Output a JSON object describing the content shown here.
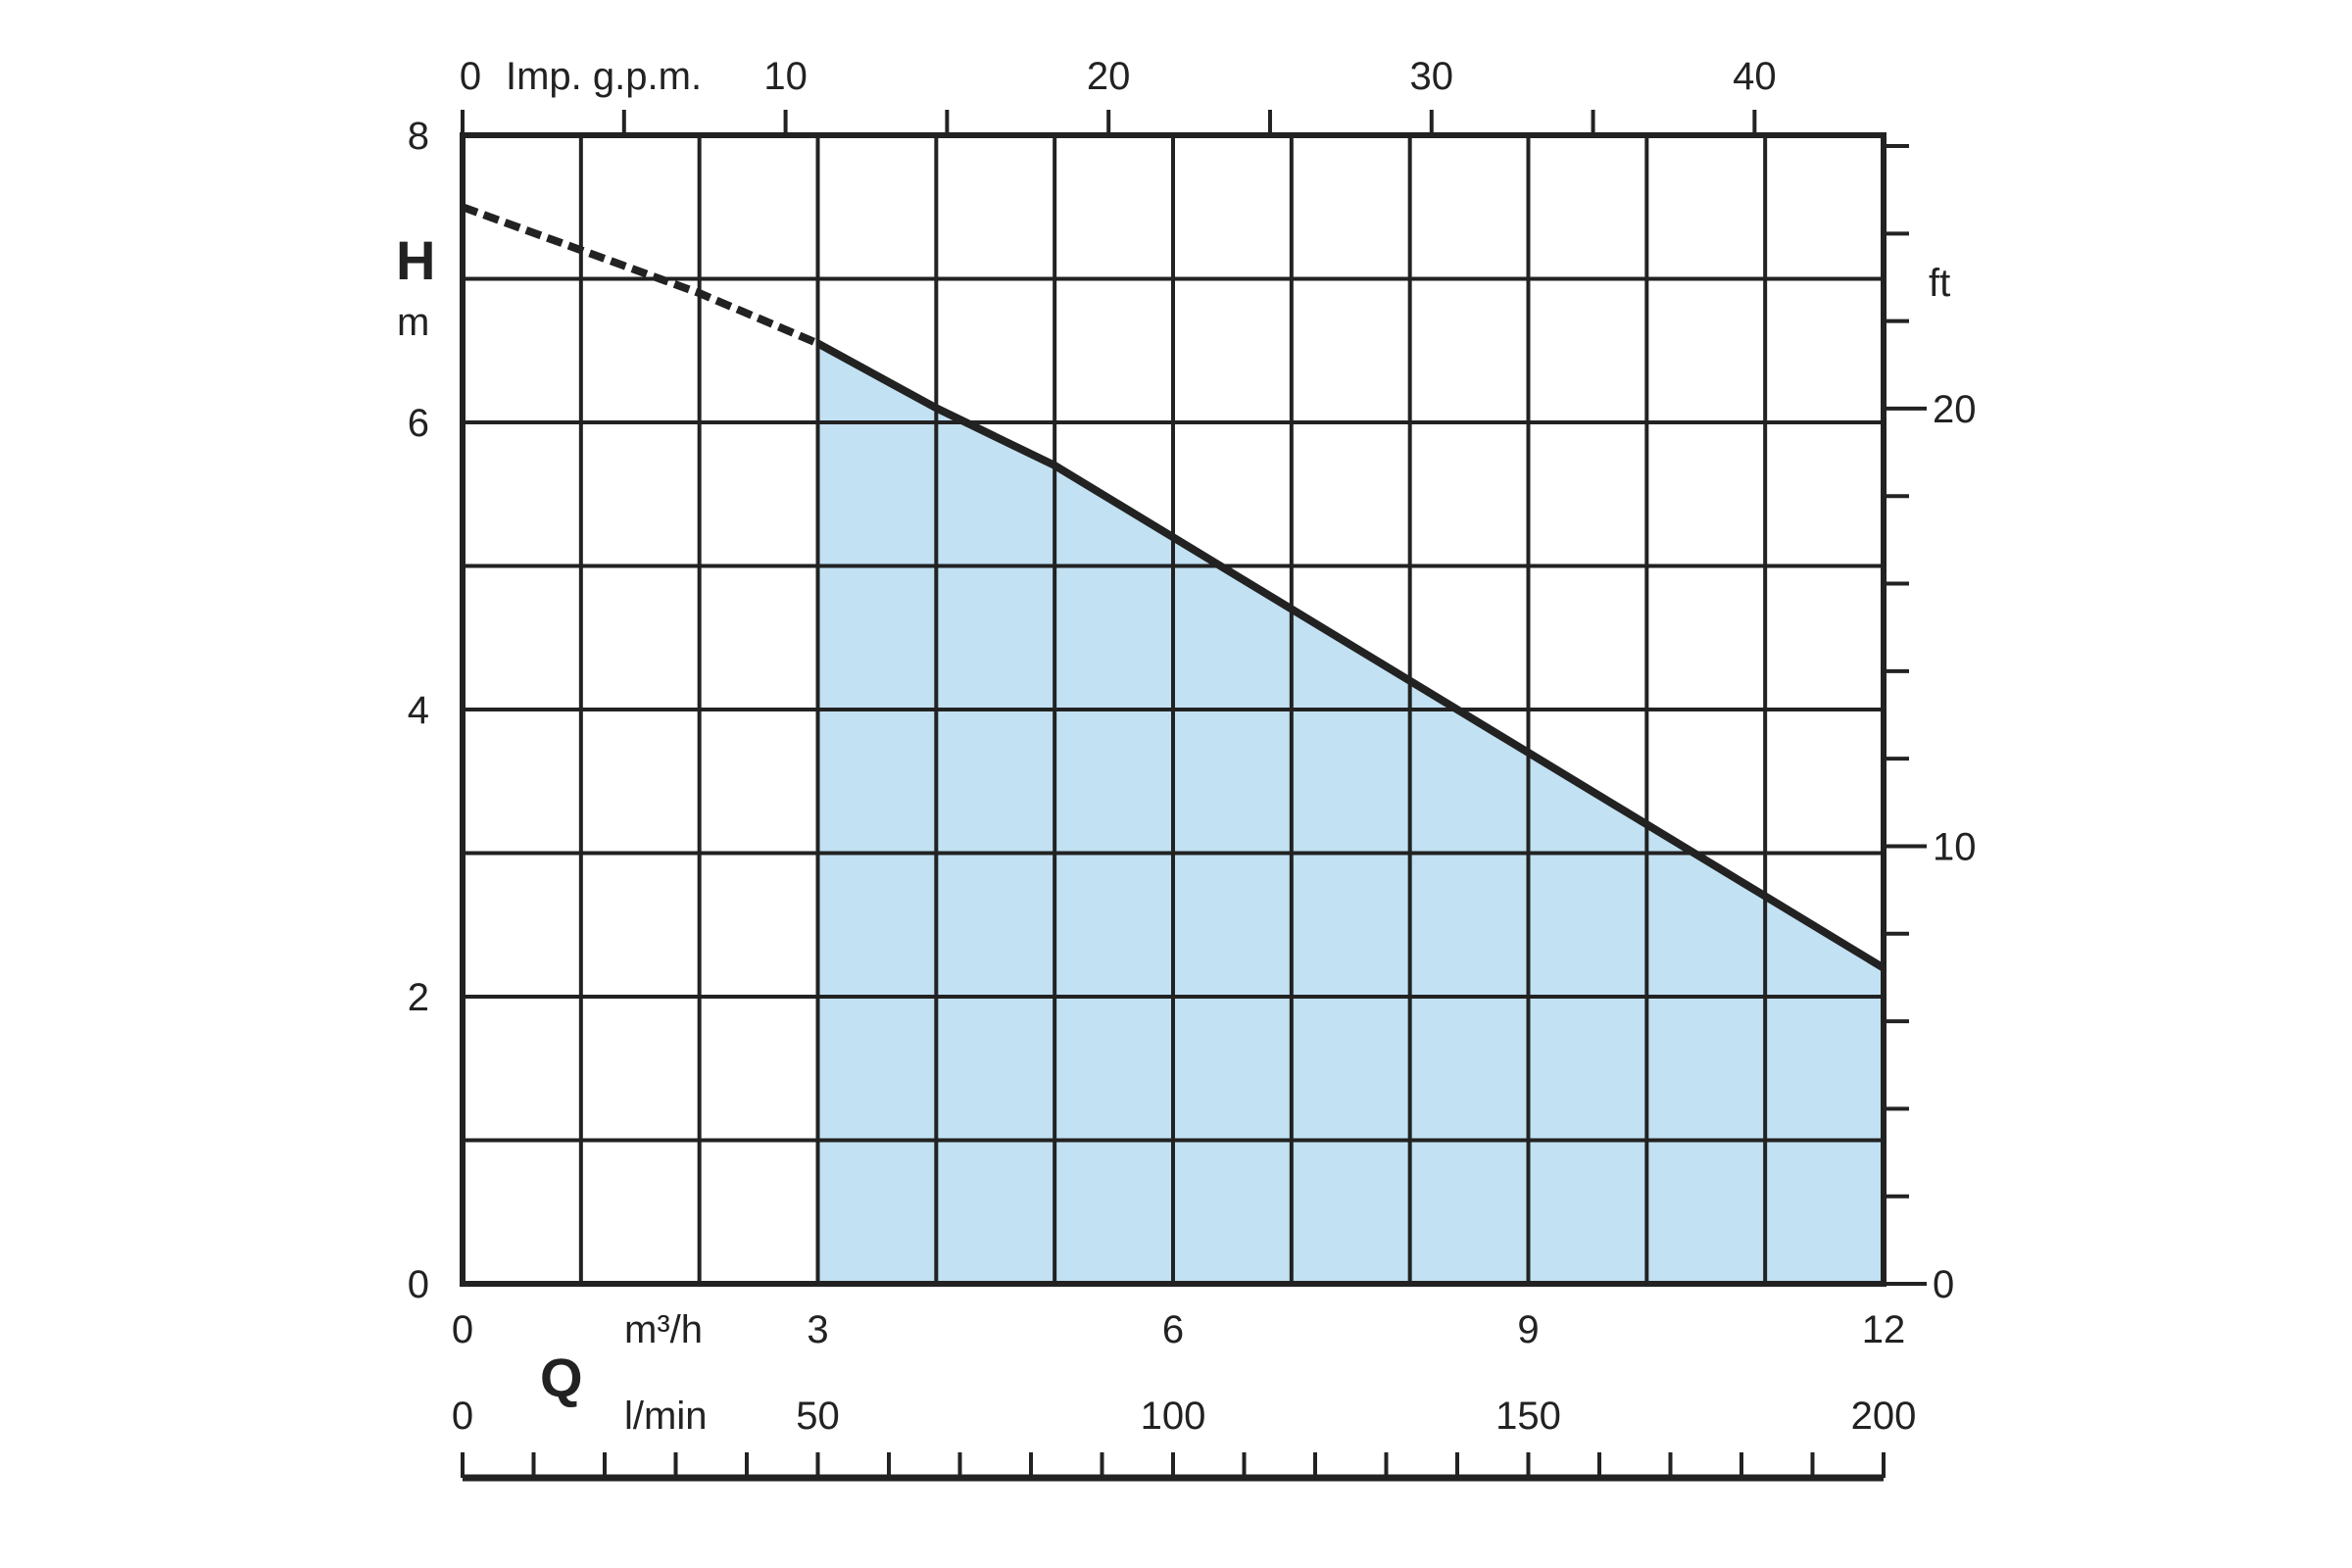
{
  "chart_data": {
    "type": "area",
    "title": "",
    "colors": {
      "fill": "#c2e1f2",
      "curve": "#222222",
      "grid": "#222222"
    },
    "grid": true,
    "axes": {
      "left": {
        "letter": "H",
        "unit": "m",
        "range": [
          0,
          8
        ],
        "ticks": [
          "0",
          "2",
          "4",
          "6",
          "8"
        ]
      },
      "right": {
        "unit": "ft",
        "ticks": [
          "0",
          "10",
          "20"
        ]
      },
      "top": {
        "prefix": "0",
        "unit": "Imp. g.p.m.",
        "ticks": [
          "10",
          "20",
          "30",
          "40"
        ]
      },
      "bottom_m3h": {
        "unit": "m³/h",
        "ticks": [
          "0",
          "3",
          "6",
          "9",
          "12"
        ],
        "range": [
          0,
          12
        ]
      },
      "bottom_lmin": {
        "unit": "l/min",
        "ticks": [
          "0",
          "50",
          "100",
          "150",
          "200"
        ]
      },
      "q_letter": "Q"
    },
    "series": [
      {
        "x": [
          0,
          1,
          2,
          3,
          4,
          5,
          6,
          7,
          8,
          9,
          10,
          11,
          12
        ],
        "y": [
          7.5,
          7.2,
          6.9,
          6.55,
          6.1,
          5.7,
          5.2,
          4.7,
          4.2,
          3.7,
          3.2,
          2.7,
          2.2
        ],
        "dashed_until_x": 3,
        "shaded_from_x": 3
      }
    ]
  }
}
